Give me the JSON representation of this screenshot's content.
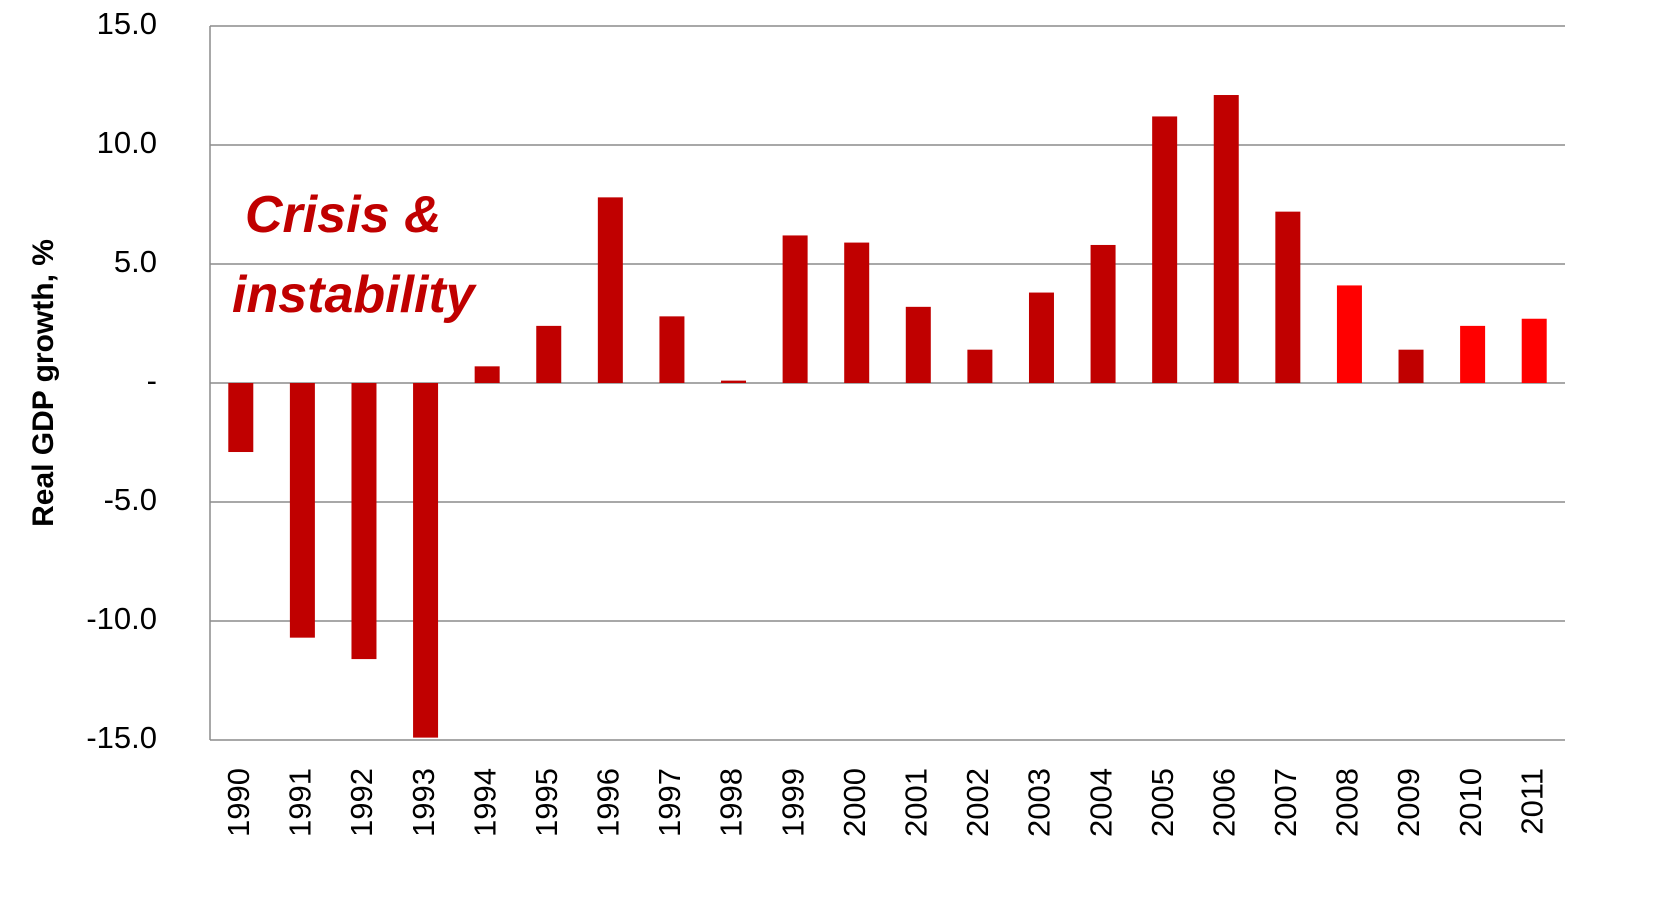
{
  "chart_data": {
    "type": "bar",
    "y_axis_label": "Real GDP growth, %",
    "annotation": [
      "Crisis &",
      "instability"
    ],
    "annotation_color": "#c00000",
    "categories": [
      "1990",
      "1991",
      "1992",
      "1993",
      "1994",
      "1995",
      "1996",
      "1997",
      "1998",
      "1999",
      "2000",
      "2001",
      "2002",
      "2003",
      "2004",
      "2005",
      "2006",
      "2007",
      "2008",
      "2009",
      "2010",
      "2011"
    ],
    "values": [
      -2.9,
      -10.7,
      -11.6,
      -14.9,
      0.7,
      2.4,
      7.8,
      2.8,
      0.1,
      6.2,
      5.9,
      3.2,
      1.4,
      3.8,
      5.8,
      11.2,
      12.1,
      7.2,
      4.1,
      1.4,
      2.4,
      2.7
    ],
    "colors": [
      "#c00000",
      "#c00000",
      "#c00000",
      "#c00000",
      "#c00000",
      "#c00000",
      "#c00000",
      "#c00000",
      "#c00000",
      "#c00000",
      "#c00000",
      "#c00000",
      "#c00000",
      "#c00000",
      "#c00000",
      "#c00000",
      "#c00000",
      "#c00000",
      "#ff0000",
      "#c00000",
      "#ff0000",
      "#ff0000"
    ],
    "ylim": [
      -15,
      15
    ],
    "yticks": [
      {
        "value": -15,
        "label": "-15.0"
      },
      {
        "value": -10,
        "label": "-10.0"
      },
      {
        "value": -5,
        "label": "-5.0"
      },
      {
        "value": 0,
        "label": "-"
      },
      {
        "value": 5,
        "label": "5.0"
      },
      {
        "value": 10,
        "label": "10.0"
      },
      {
        "value": 15,
        "label": "15.0"
      }
    ],
    "grid": true
  }
}
